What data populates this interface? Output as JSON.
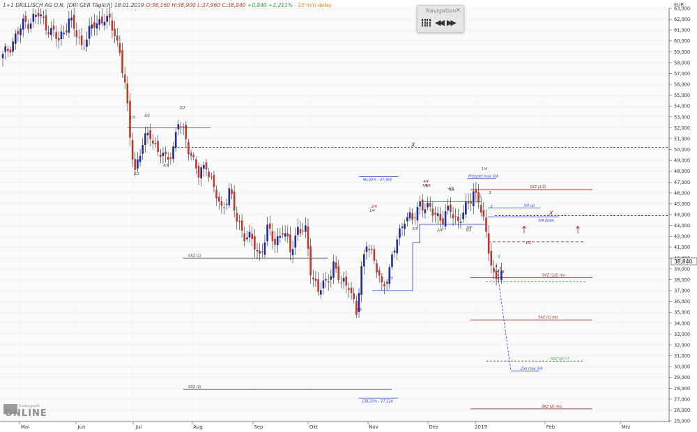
{
  "header": {
    "instrument": "1+1 DRILLISCH AG O.N. [DRI GER Täglich] 18.01.2019",
    "ohlc": "O:38,160 H:38,900 L:37,960 C:38,840",
    "change": "+0,840 +2,211%",
    "delay": "- 15 min delay"
  },
  "navigation_panel": {
    "title": "Navigation",
    "close": "×",
    "buttons": [
      "grid-icon",
      "rewind-icon",
      "fast-forward-icon"
    ]
  },
  "logo": {
    "main": "ONLINE",
    "sub": "Tradesignal®"
  },
  "chart_data": {
    "type": "candlestick",
    "currency": "EUR",
    "ylim": [
      25,
      63
    ],
    "y_ticks": [
      25,
      26,
      27,
      28,
      29,
      30,
      31,
      32,
      33,
      34,
      35,
      36,
      37,
      38,
      39,
      40,
      41,
      42,
      43,
      44,
      45,
      46,
      47,
      48,
      49,
      50,
      51,
      52,
      53,
      54,
      55,
      56,
      57,
      58,
      59,
      60,
      61,
      62,
      63
    ],
    "y_tick_decimals": 3,
    "x_month_labels": [
      "Mai",
      "Jun",
      "Jul",
      "Aug",
      "Sep",
      "Okt",
      "Nov",
      "Dez",
      "2019",
      "Feb",
      "Mrz"
    ],
    "last_price": "38,840",
    "colors": {
      "up": "#1f2aa8",
      "down": "#c0392b",
      "resistance": "#8b1a1a",
      "support": "#2e8b2e",
      "projection": "#1f3fd4",
      "neutral": "#333333"
    },
    "anchors": [
      [
        0,
        58.5
      ],
      [
        8,
        61.5
      ],
      [
        14,
        62.4
      ],
      [
        18,
        61.2
      ],
      [
        22,
        60.0
      ],
      [
        26,
        62.0
      ],
      [
        31,
        59.6
      ],
      [
        36,
        61.5
      ],
      [
        40,
        62.2
      ],
      [
        44,
        60.8
      ],
      [
        46,
        59.0
      ],
      [
        48,
        56.0
      ],
      [
        50,
        51.0
      ],
      [
        52,
        48.2
      ],
      [
        55,
        50.5
      ],
      [
        58,
        51.5
      ],
      [
        61,
        49.8
      ],
      [
        64,
        49.0
      ],
      [
        67,
        50.2
      ],
      [
        69,
        52.5
      ],
      [
        72,
        51.0
      ],
      [
        74,
        49.6
      ],
      [
        77,
        47.5
      ],
      [
        80,
        48.8
      ],
      [
        83,
        46.2
      ],
      [
        86,
        44.5
      ],
      [
        89,
        46.2
      ],
      [
        92,
        43.5
      ],
      [
        95,
        42.2
      ],
      [
        98,
        41.5
      ],
      [
        101,
        40.3
      ],
      [
        104,
        42.5
      ],
      [
        107,
        41.5
      ],
      [
        110,
        42.6
      ],
      [
        113,
        40.6
      ],
      [
        116,
        42.8
      ],
      [
        119,
        42.3
      ],
      [
        121,
        39.0
      ],
      [
        124,
        37.0
      ],
      [
        127,
        37.6
      ],
      [
        130,
        39.5
      ],
      [
        133,
        37.5
      ],
      [
        136,
        37.8
      ],
      [
        139,
        34.8
      ],
      [
        141,
        38.8
      ],
      [
        143,
        41.8
      ],
      [
        146,
        39.5
      ],
      [
        149,
        37.5
      ],
      [
        152,
        38.8
      ],
      [
        155,
        41.8
      ],
      [
        158,
        43.8
      ],
      [
        161,
        43.4
      ],
      [
        164,
        45.2
      ],
      [
        167,
        44.4
      ],
      [
        170,
        44.2
      ],
      [
        173,
        43.5
      ],
      [
        176,
        44.5
      ],
      [
        179,
        43.4
      ],
      [
        181,
        44.0
      ],
      [
        183,
        45.0
      ],
      [
        185,
        46.3
      ],
      [
        187,
        45.3
      ],
      [
        189,
        43.2
      ],
      [
        191,
        41.0
      ],
      [
        193,
        38.5
      ],
      [
        194,
        37.95
      ],
      [
        196,
        38.84
      ]
    ],
    "levels": [
      {
        "label": "SXZ (1/2)",
        "value": 46.3,
        "color": "resistance"
      },
      {
        "label": "SXZ (1/2) mv.",
        "value": 38.2,
        "color": "resistance"
      },
      {
        "label": "SXZ (1) mv.",
        "value": 34.3,
        "color": "resistance"
      },
      {
        "label": "SXZ (2) mv.",
        "value": 26.1,
        "color": "resistance"
      },
      {
        "label": "SXZ (1)",
        "value": 40.0,
        "color": "neutral"
      },
      {
        "label": "SXZ (2)",
        "value": 27.9,
        "color": "neutral"
      },
      {
        "label": "SXZ (2)???",
        "value": 30.5,
        "color": "support"
      },
      {
        "label": "3/4 up",
        "value": 44.6,
        "color": "projection"
      },
      {
        "label": "3/4 down",
        "value": 43.8,
        "color": "projection"
      },
      {
        "label": "Ziel max 3/4",
        "value": 29.6,
        "color": "projection"
      },
      {
        "label": "Preisziel max 3/4",
        "value": 47.3,
        "color": "projection"
      },
      {
        "label": "90,00% - 47,455",
        "value": 47.5,
        "color": "projection"
      },
      {
        "label": "138,20% - 27,124",
        "value": 27.1,
        "color": "projection"
      },
      {
        "label": "1/2",
        "value": 41.5,
        "color": "resistance"
      },
      {
        "label": "X",
        "value": 50.2,
        "color": "neutral"
      },
      {
        "label": "X",
        "value": 43.9,
        "color": "resistance"
      }
    ],
    "wave_labels": [
      "1/3",
      "5/3",
      "5/3",
      "2/3",
      "4/3",
      "2/4",
      "4/4",
      "2/4",
      "4/4",
      "3/3",
      "2/3",
      "3/3",
      "5/3",
      "1/4",
      "5/4",
      "3",
      "5",
      "5/4",
      "1",
      "2",
      "3",
      "4",
      "5",
      "1/4",
      "5/4",
      "3/4",
      "4/3"
    ]
  }
}
